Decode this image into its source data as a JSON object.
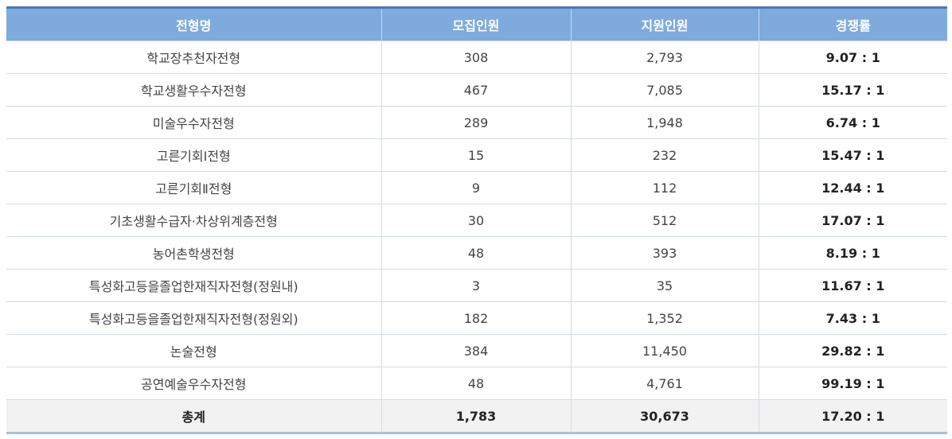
{
  "table": {
    "headers": [
      "전형명",
      "모집인원",
      "지원인원",
      "경쟁률"
    ],
    "rows": [
      {
        "name": "학교장추천자전형",
        "recruit": "308",
        "applicants": "2,793",
        "ratio": "9.07 : 1"
      },
      {
        "name": "학교생활우수자전형",
        "recruit": "467",
        "applicants": "7,085",
        "ratio": "15.17 : 1"
      },
      {
        "name": "미술우수자전형",
        "recruit": "289",
        "applicants": "1,948",
        "ratio": "6.74 : 1"
      },
      {
        "name": "고른기회Ⅰ전형",
        "recruit": "15",
        "applicants": "232",
        "ratio": "15.47 : 1"
      },
      {
        "name": "고른기회Ⅱ전형",
        "recruit": "9",
        "applicants": "112",
        "ratio": "12.44 : 1"
      },
      {
        "name": "기초생활수급자·차상위계층전형",
        "recruit": "30",
        "applicants": "512",
        "ratio": "17.07 : 1"
      },
      {
        "name": "농어촌학생전형",
        "recruit": "48",
        "applicants": "393",
        "ratio": "8.19 : 1"
      },
      {
        "name": "특성화고등을졸업한재직자전형(정원내)",
        "recruit": "3",
        "applicants": "35",
        "ratio": "11.67 : 1"
      },
      {
        "name": "특성화고등을졸업한재직자전형(정원외)",
        "recruit": "182",
        "applicants": "1,352",
        "ratio": "7.43 : 1"
      },
      {
        "name": "논술전형",
        "recruit": "384",
        "applicants": "11,450",
        "ratio": "29.82 : 1"
      },
      {
        "name": "공연예술우수자전형",
        "recruit": "48",
        "applicants": "4,761",
        "ratio": "99.19 : 1"
      }
    ],
    "total": {
      "name": "총계",
      "recruit": "1,783",
      "applicants": "30,673",
      "ratio": "17.20 : 1"
    }
  },
  "colors": {
    "header_bg": "#7faadd",
    "header_top_border": "#4a78b8",
    "total_row_bg": "#f2f2f2"
  }
}
